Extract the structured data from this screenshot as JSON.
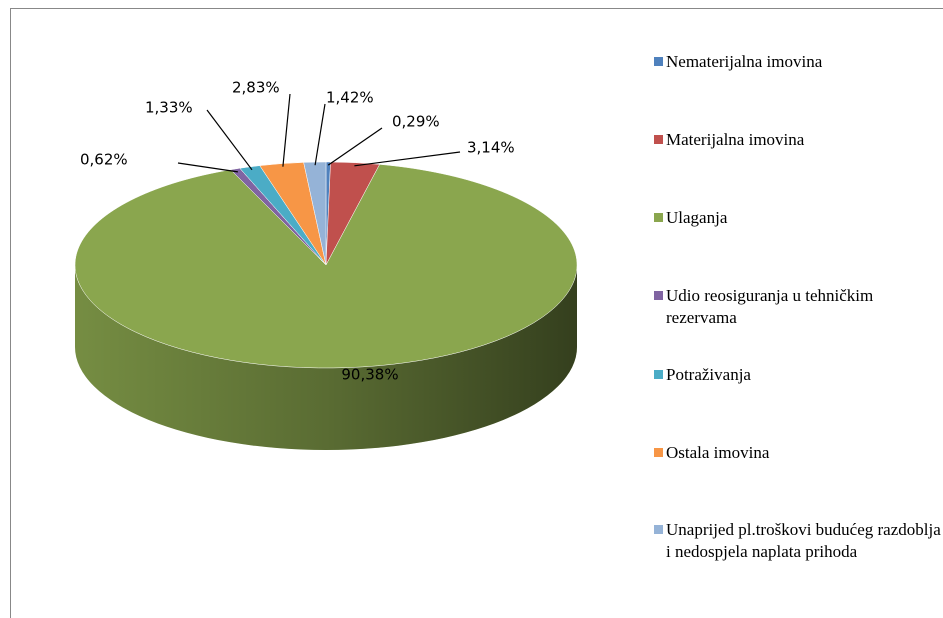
{
  "chart_data": {
    "type": "pie",
    "categories": [
      "Nematerijalna imovina",
      "Materijalna imovina",
      "Ulaganja",
      "Udio reosiguranja u tehničkim rezervama",
      "Potraživanja",
      "Ostala imovina",
      "Unaprijed pl.troškovi budućeg razdoblja i nedospjela naplata prihoda"
    ],
    "values": [
      0.29,
      3.14,
      90.38,
      0.62,
      1.33,
      2.83,
      1.42
    ],
    "value_labels": [
      "0,29%",
      "3,14%",
      "90,38%",
      "0,62%",
      "1,33%",
      "2,83%",
      "1,42%"
    ],
    "colors": [
      "#4f81bd",
      "#c0504d",
      "#8aa64e",
      "#8064a2",
      "#4bacc6",
      "#f79646",
      "#95b3d7"
    ],
    "legend": "right"
  }
}
